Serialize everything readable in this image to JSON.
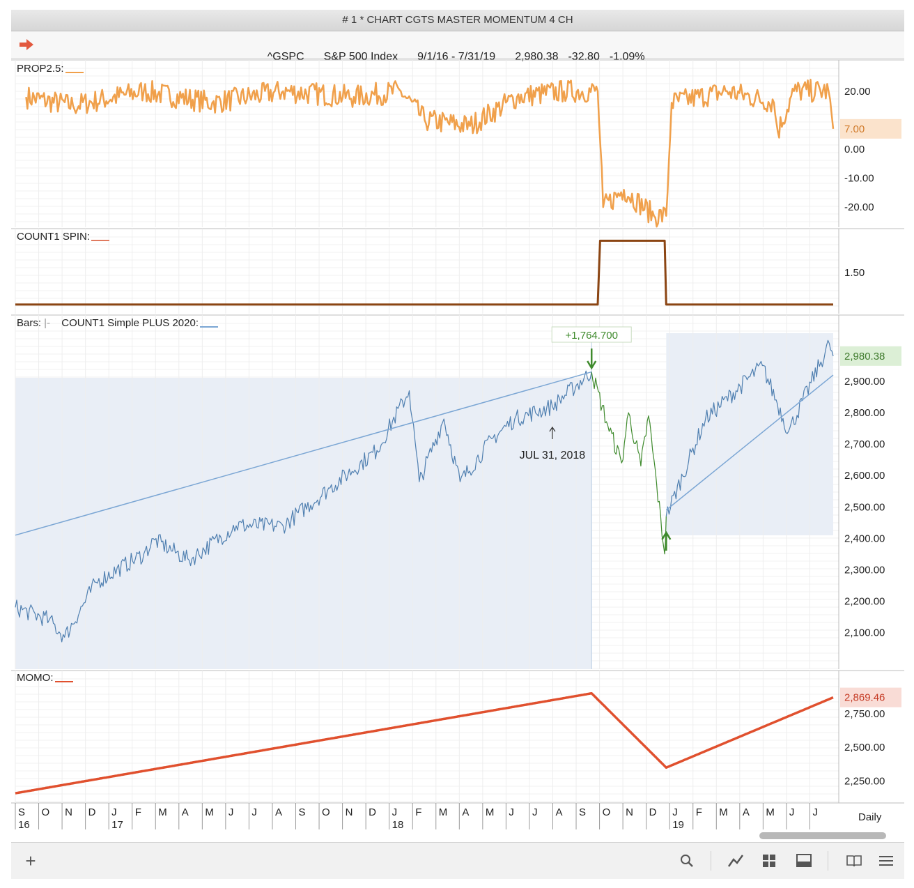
{
  "window": {
    "title": "# 1 * CHART CGTS MASTER MOMENTUM 4 CH"
  },
  "info": {
    "symbol": "^GSPC",
    "name": "S&P 500 Index",
    "range": "9/1/16 - 7/31/19",
    "last": "2,980.38",
    "change": "-32.80",
    "pct": "-1.09%"
  },
  "colors": {
    "prop": "#f0a04b",
    "spin": "#8b4513",
    "price_blue": "#4f7fb0",
    "price_green": "#3e8a2c",
    "momo": "#e0502e",
    "trend": "#7ba6d4"
  },
  "icons": [
    "right-arrow-icon",
    "plus-icon",
    "search-icon",
    "line-chart-icon",
    "grid-icon",
    "panel-icon",
    "book-icon",
    "menu-icon"
  ],
  "panels": {
    "prop": {
      "label": "PROP2.5:",
      "ticks": [
        "20.00",
        "0.00",
        "-10.00",
        "-20.00"
      ],
      "badge": "7.00"
    },
    "spin": {
      "label": "COUNT1 SPIN:",
      "ticks": [
        "1.50"
      ]
    },
    "price": {
      "label_bars": "Bars:",
      "label_study": "COUNT1 Simple PLUS 2020:",
      "ticks": [
        "2,900.00",
        "2,800.00",
        "2,700.00",
        "2,600.00",
        "2,500.00",
        "2,400.00",
        "2,300.00",
        "2,200.00",
        "2,100.00"
      ],
      "badge": "2,980.38",
      "annotation_top": "+1,764.700",
      "annotation_date": "JUL 31, 2018"
    },
    "momo": {
      "label": "MOMO:",
      "ticks": [
        "2,750.00",
        "2,500.00",
        "2,250.00"
      ],
      "badge": "2,869.46"
    }
  },
  "xaxis": {
    "months": [
      "S",
      "O",
      "N",
      "D",
      "J",
      "F",
      "M",
      "A",
      "M",
      "J",
      "J",
      "A",
      "S",
      "O",
      "N",
      "D",
      "J",
      "F",
      "M",
      "A",
      "M",
      "J",
      "J",
      "A",
      "S",
      "O",
      "N",
      "D",
      "J",
      "F",
      "M",
      "A",
      "M",
      "J",
      "J"
    ],
    "years": [
      {
        "label": "16",
        "index": 0
      },
      {
        "label": "17",
        "index": 4
      },
      {
        "label": "18",
        "index": 16
      },
      {
        "label": "19",
        "index": 28
      }
    ],
    "period": "Daily"
  },
  "chart_data": [
    {
      "type": "line",
      "name_text": "PROP2.5",
      "x_range": [
        "2016-09-01",
        "2019-07-31"
      ],
      "ylim": [
        -25,
        25
      ],
      "series": [
        {
          "x": [
            "2016-09",
            "2016-11",
            "2017-02",
            "2017-05",
            "2017-08",
            "2017-11",
            "2018-01",
            "2018-02",
            "2018-04",
            "2018-06",
            "2018-08",
            "2018-09-28",
            "2018-10-05",
            "2018-11-01",
            "2018-12-10",
            "2018-12-26",
            "2019-01-02",
            "2019-03",
            "2019-05",
            "2019-05-20",
            "2019-06-10",
            "2019-07-25",
            "2019-07-31"
          ],
          "values": [
            18,
            15,
            20,
            16,
            20,
            18,
            20,
            10,
            8,
            18,
            20,
            20,
            -20,
            -14,
            -23,
            -23,
            16,
            20,
            16,
            6,
            20,
            20,
            7
          ]
        }
      ]
    },
    {
      "type": "line",
      "name_text": "COUNT1 SPIN",
      "x_range": [
        "2016-09-01",
        "2019-07-31"
      ],
      "ylim": [
        0.9,
        1.95
      ],
      "series": [
        {
          "x": [
            "2016-09-01",
            "2018-09-28",
            "2018-10-01",
            "2018-12-24",
            "2018-12-26",
            "2019-07-31"
          ],
          "values": [
            1,
            1,
            2,
            2,
            1,
            1
          ]
        }
      ]
    },
    {
      "type": "line",
      "name_text": "^GSPC",
      "x_range": [
        "2016-09-01",
        "2019-07-31"
      ],
      "ylim": [
        2050,
        3000
      ],
      "series": [
        {
          "x": [
            "2016-09-01",
            "2016-10-15",
            "2016-11-04",
            "2016-12-15",
            "2017-02-15",
            "2017-03-01",
            "2017-04-15",
            "2017-06-15",
            "2017-08-15",
            "2017-10-15",
            "2017-12-15",
            "2018-01-26",
            "2018-02-08",
            "2018-03-12",
            "2018-04-02",
            "2018-05-15",
            "2018-06-12",
            "2018-07-31",
            "2018-09-20"
          ],
          "values": [
            2180,
            2140,
            2085,
            2260,
            2350,
            2395,
            2330,
            2440,
            2440,
            2560,
            2680,
            2870,
            2580,
            2780,
            2580,
            2720,
            2780,
            2820,
            2930
          ]
        },
        {
          "x": [
            "2018-09-20",
            "2018-10-11",
            "2018-10-29",
            "2018-11-07",
            "2018-11-23",
            "2018-12-03",
            "2018-12-24",
            "2018-12-26"
          ],
          "values": [
            2930,
            2760,
            2640,
            2800,
            2630,
            2790,
            2350,
            2470
          ]
        },
        {
          "x": [
            "2018-12-26",
            "2019-02-15",
            "2019-04-30",
            "2019-06-03",
            "2019-07-26",
            "2019-07-31"
          ],
          "values": [
            2470,
            2780,
            2950,
            2740,
            3020,
            2980
          ]
        }
      ],
      "trendlines": [
        {
          "x": [
            "2016-09-01",
            "2018-09-20"
          ],
          "values": [
            2410,
            2930
          ]
        },
        {
          "x": [
            "2018-12-26",
            "2019-07-31"
          ],
          "values": [
            2490,
            2920
          ]
        }
      ]
    },
    {
      "type": "line",
      "name_text": "MOMO",
      "x_range": [
        "2016-09-01",
        "2019-07-31"
      ],
      "ylim": [
        2150,
        2950
      ],
      "series": [
        {
          "x": [
            "2016-09-01",
            "2018-09-20",
            "2018-12-26",
            "2019-07-31"
          ],
          "values": [
            2160,
            2900,
            2350,
            2869.46
          ]
        }
      ]
    }
  ]
}
